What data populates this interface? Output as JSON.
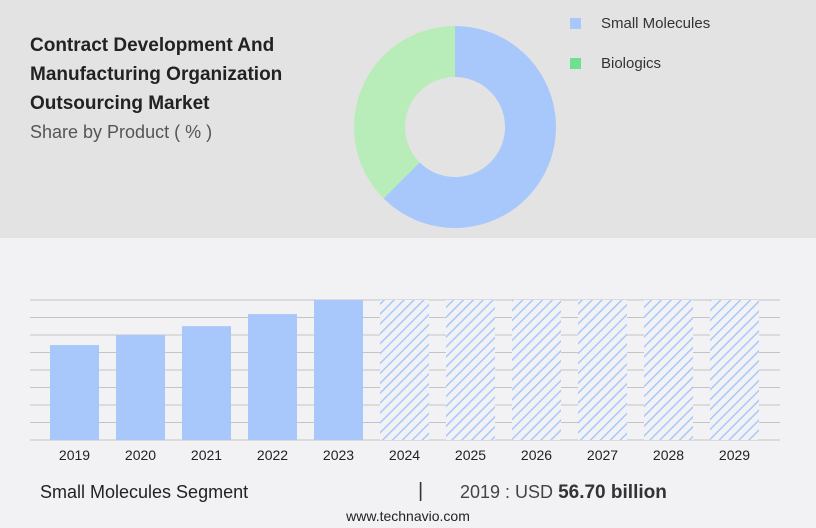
{
  "header": {
    "title": "Contract Development And Manufacturing Organization Outsourcing Market",
    "subtitle": "Share by Product ( % )"
  },
  "colors": {
    "small_molecules": "#a8c8fc",
    "biologics": "#b8ecb8",
    "biologics_legend": "#6fe08f",
    "hatch": "#a8c8fc"
  },
  "chart_data": [
    {
      "type": "pie",
      "donut": true,
      "categories": [
        "Small Molecules",
        "Biologics"
      ],
      "values": [
        62.5,
        37.5
      ],
      "legend": "top-right"
    },
    {
      "type": "bar",
      "categories": [
        "2019",
        "2020",
        "2021",
        "2022",
        "2023",
        "2024",
        "2025",
        "2026",
        "2027",
        "2028",
        "2029"
      ],
      "values": [
        56.7,
        62.7,
        68.0,
        75.2,
        83.6,
        null,
        null,
        null,
        null,
        null,
        null
      ],
      "forecast": [
        "2024",
        "2025",
        "2026",
        "2027",
        "2028",
        "2029"
      ],
      "ylim": [
        0,
        83.6
      ],
      "grid": true
    }
  ],
  "footer": {
    "segment": "Small Molecules Segment",
    "separator": "|",
    "year_label": "2019 : USD",
    "value": "56.70 billion",
    "site": "www.technavio.com"
  }
}
